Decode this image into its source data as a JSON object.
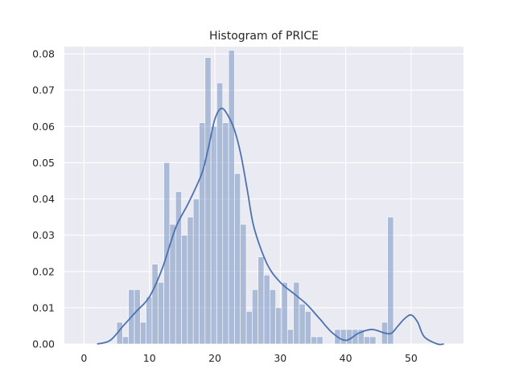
{
  "chart_data": {
    "type": "bar",
    "title": "Histogram of PRICE",
    "xlabel": "",
    "ylabel": "",
    "xlim": [
      -3,
      58
    ],
    "ylim": [
      0,
      0.082
    ],
    "xticks": [
      0,
      10,
      20,
      30,
      40,
      50
    ],
    "yticks": [
      0.0,
      0.01,
      0.02,
      0.03,
      0.04,
      0.05,
      0.06,
      0.07,
      0.08
    ],
    "ytick_labels": [
      "0.00",
      "0.01",
      "0.02",
      "0.03",
      "0.04",
      "0.05",
      "0.06",
      "0.07",
      "0.08"
    ],
    "grid": true,
    "legend": false,
    "background_color": "#eaeaf2",
    "grid_color": "#ffffff",
    "bar_color": "#4c72b0",
    "bar_opacity": 0.4,
    "kde_color": "#4c72b0",
    "bins": {
      "start": 5.0,
      "width": 0.9,
      "density": [
        0.006,
        0.002,
        0.015,
        0.015,
        0.006,
        0.013,
        0.022,
        0.017,
        0.05,
        0.033,
        0.042,
        0.03,
        0.035,
        0.04,
        0.061,
        0.079,
        0.06,
        0.072,
        0.061,
        0.081,
        0.047,
        0.033,
        0.009,
        0.015,
        0.024,
        0.019,
        0.015,
        0.01,
        0.017,
        0.004,
        0.017,
        0.011,
        0.009,
        0.002,
        0.002,
        0.0,
        0.0,
        0.004,
        0.004,
        0.004,
        0.004,
        0.004,
        0.002,
        0.002,
        0.0,
        0.006,
        0.035
      ]
    },
    "kde": {
      "x": [
        2,
        4,
        6,
        8,
        10,
        12,
        14,
        16,
        18,
        19,
        20,
        21,
        22,
        23,
        24,
        25,
        26,
        28,
        30,
        32,
        34,
        36,
        38,
        40,
        42,
        44,
        46,
        47,
        48,
        49,
        50,
        51,
        52,
        54,
        55
      ],
      "y": [
        0.0,
        0.001,
        0.005,
        0.009,
        0.013,
        0.021,
        0.032,
        0.039,
        0.047,
        0.054,
        0.062,
        0.065,
        0.063,
        0.059,
        0.052,
        0.042,
        0.032,
        0.022,
        0.017,
        0.014,
        0.011,
        0.007,
        0.003,
        0.001,
        0.003,
        0.004,
        0.003,
        0.003,
        0.005,
        0.007,
        0.008,
        0.006,
        0.002,
        0.0,
        0.0
      ]
    }
  }
}
